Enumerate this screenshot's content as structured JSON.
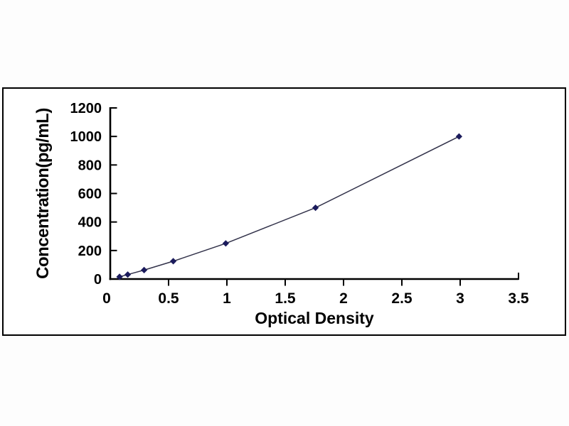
{
  "chart_data": {
    "type": "line",
    "title": "",
    "xlabel": "Optical Density",
    "ylabel": "Concentration(pg/mL)",
    "x": [
      0.08,
      0.15,
      0.29,
      0.54,
      0.99,
      1.76,
      2.99
    ],
    "y": [
      15.6,
      31.2,
      62.5,
      125,
      250,
      500,
      1000
    ],
    "xlim": [
      0,
      3.5
    ],
    "ylim": [
      0,
      1200
    ],
    "x_ticks": [
      0,
      0.5,
      1,
      1.5,
      2,
      2.5,
      3,
      3.5
    ],
    "y_ticks": [
      0,
      200,
      400,
      600,
      800,
      1000,
      1200
    ],
    "grid": false,
    "legend": "none",
    "marker_shape": "diamond",
    "colors": {
      "line": "#32324a",
      "marker": "#1b1b5c",
      "axis": "#000000",
      "text": "#000000",
      "panel_border": "#000000",
      "plot_background": "#ffffff",
      "page_background": "#fdfdfd"
    }
  }
}
